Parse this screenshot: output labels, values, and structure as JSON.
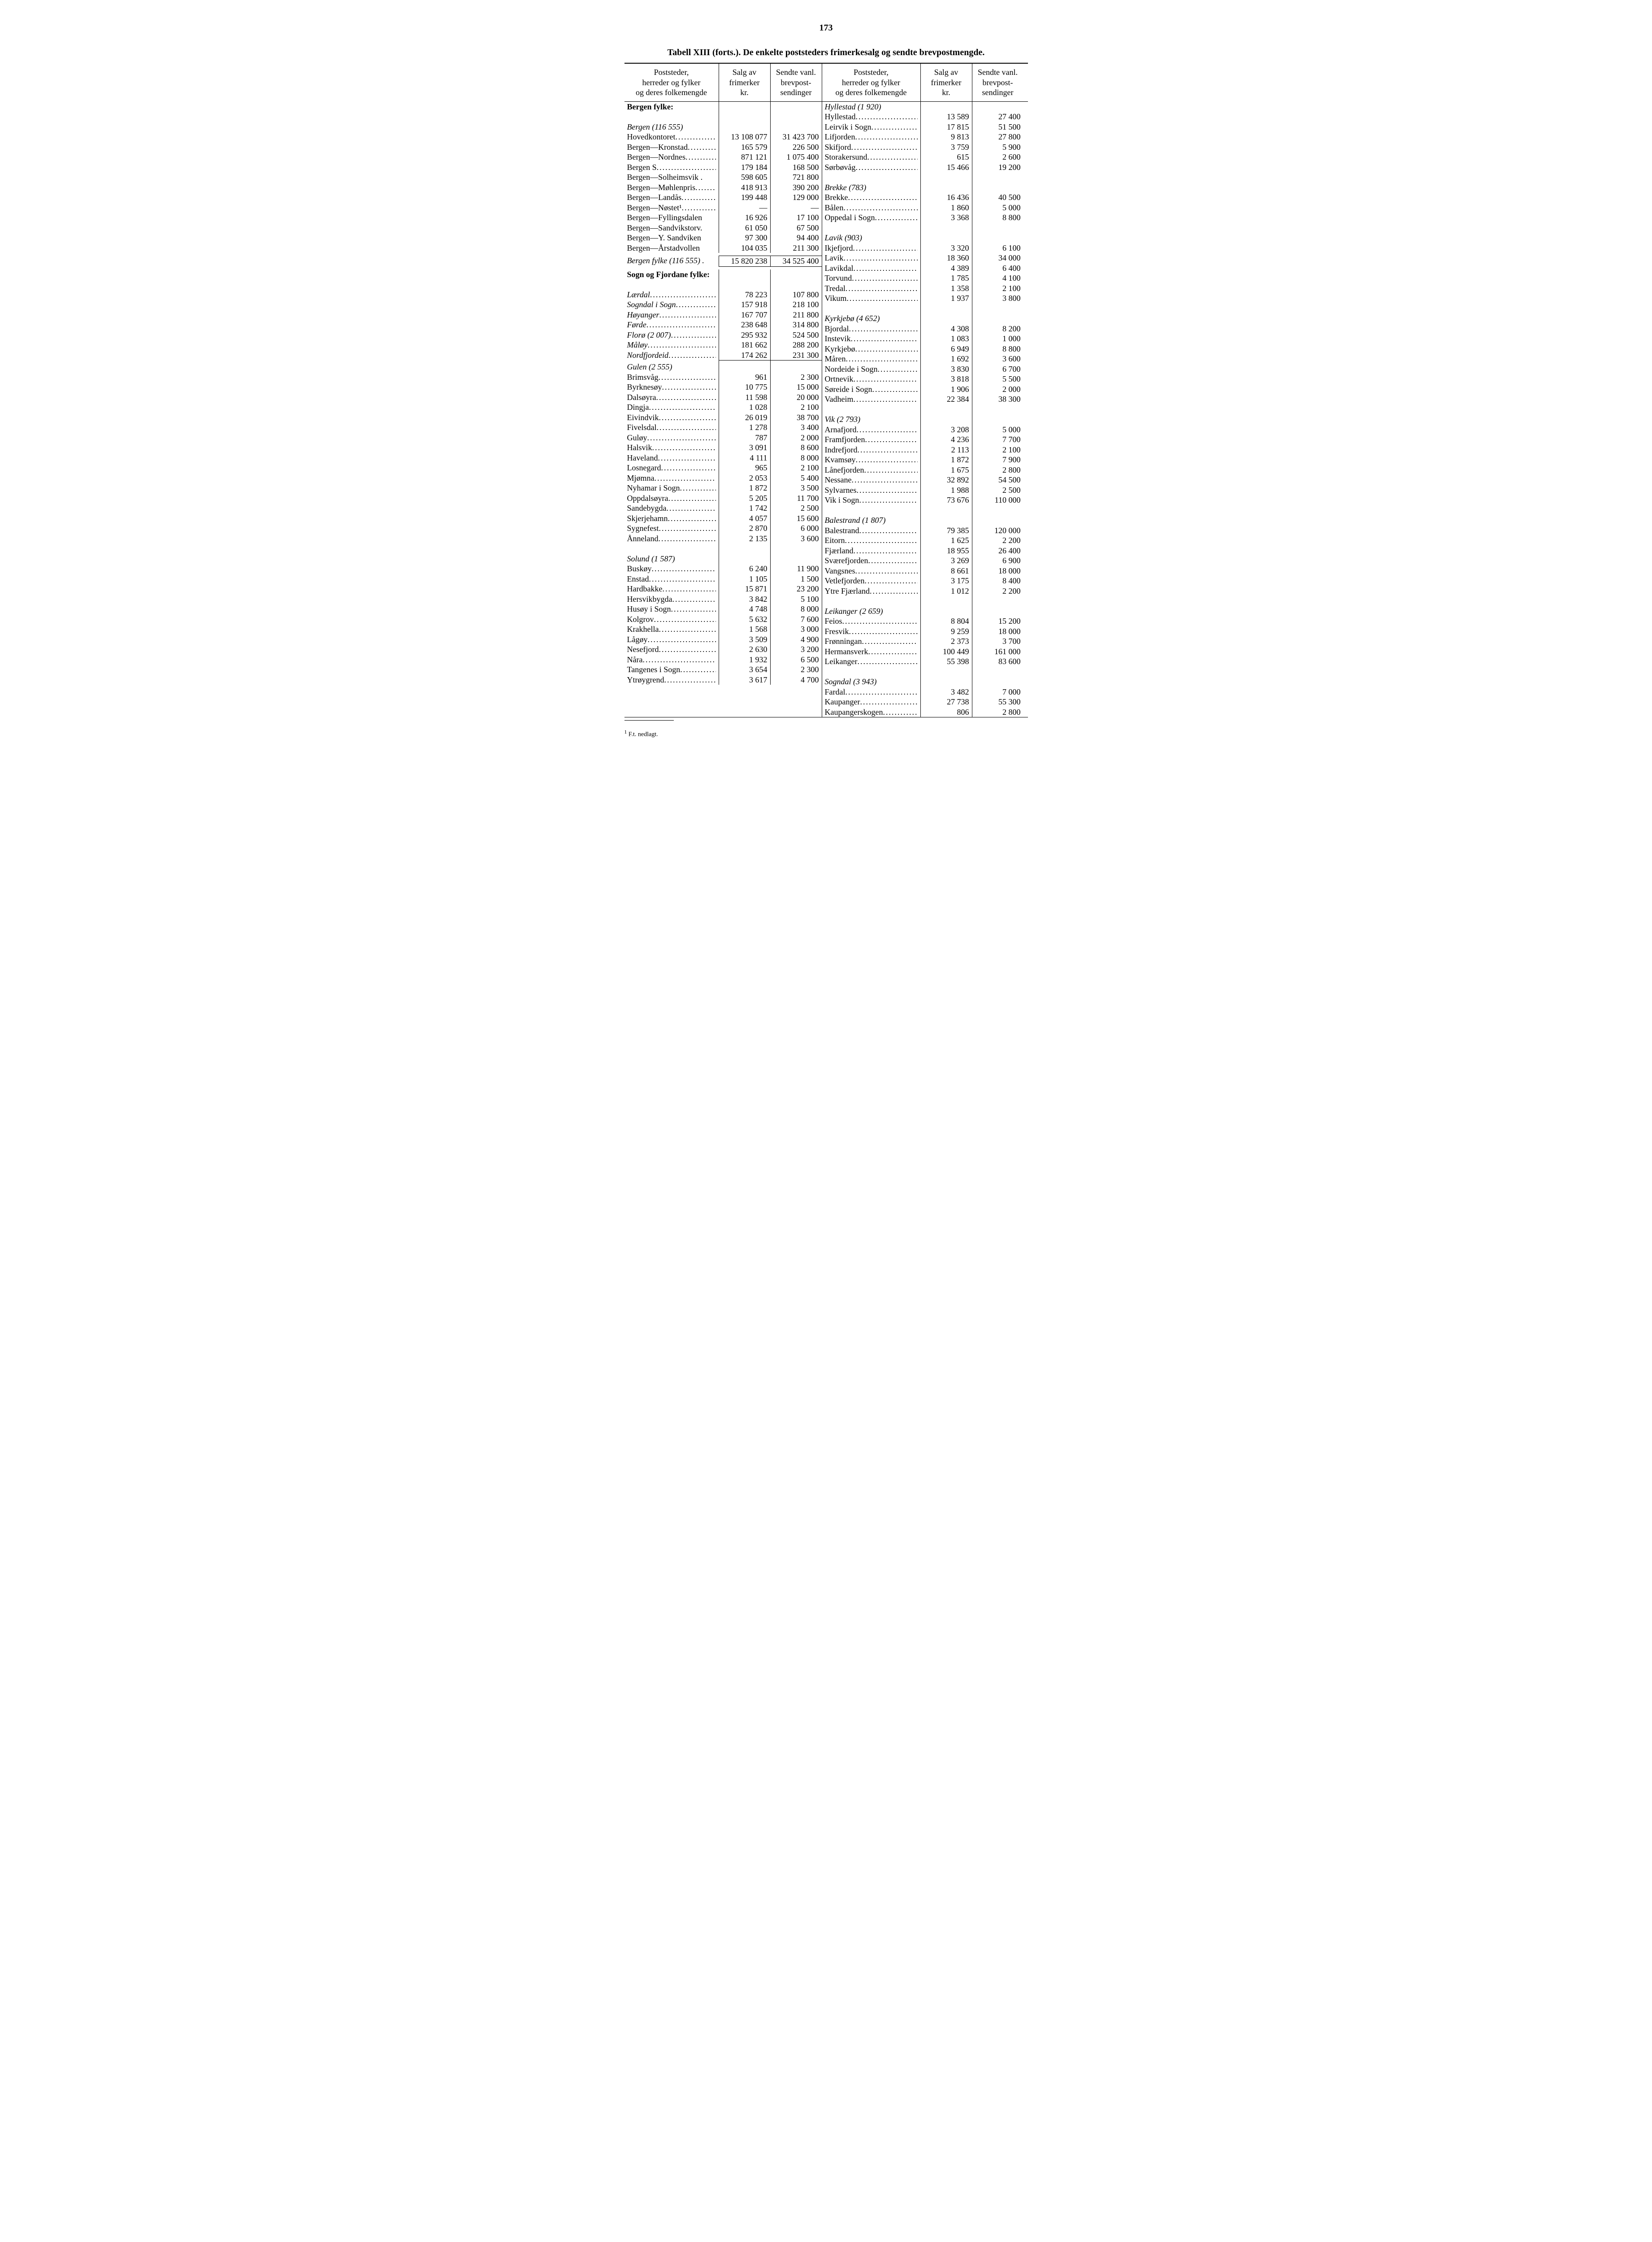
{
  "page_number": "173",
  "caption": "Tabell XIII (forts.). De enkelte poststeders frimerkesalg og sendte brevpostmengde.",
  "headers": {
    "name": "Poststeder,\nherreder og fylker\nog deres folkemengde",
    "stamps": "Salg av\nfrimerker\nkr.",
    "send": "Sendte vanl.\nbrevpost-\nsendinger"
  },
  "footnote_marker": "1",
  "footnote_text": "F.t. nedlagt.",
  "left": [
    {
      "type": "section",
      "name": "Bergen fylke:"
    },
    {
      "type": "blank"
    },
    {
      "type": "group",
      "name": "Bergen (116 555)"
    },
    {
      "type": "data",
      "name": "Hovedkontoret",
      "stamps": "13 108 077",
      "send": "31 423 700"
    },
    {
      "type": "data",
      "name": "Bergen—Kronstad",
      "stamps": "165 579",
      "send": "226 500"
    },
    {
      "type": "data",
      "name": "Bergen—Nordnes",
      "stamps": "871 121",
      "send": "1 075 400"
    },
    {
      "type": "data",
      "name": "Bergen S",
      "stamps": "179 184",
      "send": "168 500"
    },
    {
      "type": "data",
      "name": "Bergen—Solheimsvik .",
      "nodots": true,
      "stamps": "598 605",
      "send": "721 800"
    },
    {
      "type": "data",
      "name": "Bergen—Møhlenpris",
      "stamps": "418 913",
      "send": "390 200"
    },
    {
      "type": "data",
      "name": "Bergen—Landås",
      "stamps": "199 448",
      "send": "129 000"
    },
    {
      "type": "data",
      "name": "Bergen—Nøstet¹",
      "stamps": "—",
      "send": "—"
    },
    {
      "type": "data",
      "name": "Bergen—Fyllingsdalen",
      "nodots": true,
      "stamps": "16 926",
      "send": "17 100"
    },
    {
      "type": "data",
      "name": "Bergen—Sandvikstorv.",
      "nodots": true,
      "stamps": "61 050",
      "send": "67 500"
    },
    {
      "type": "data",
      "name": "Bergen—Y. Sandviken",
      "nodots": true,
      "stamps": "97 300",
      "send": "94 400"
    },
    {
      "type": "data",
      "name": "Bergen—Årstadvollen",
      "nodots": true,
      "stamps": "104 035",
      "send": "211 300"
    },
    {
      "type": "subtotal",
      "name": "Bergen fylke (116 555) .",
      "nodots": true,
      "stamps": "15 820 238",
      "send": "34 525 400",
      "italic": true
    },
    {
      "type": "section",
      "name": "Sogn og Fjordane fylke:"
    },
    {
      "type": "blank"
    },
    {
      "type": "data",
      "name": "Lærdal",
      "italic": true,
      "stamps": "78 223",
      "send": "107 800"
    },
    {
      "type": "data",
      "name": "Sogndal i Sogn",
      "italic": true,
      "stamps": "157 918",
      "send": "218 100"
    },
    {
      "type": "data",
      "name": "Høyanger",
      "italic": true,
      "stamps": "167 707",
      "send": "211 800"
    },
    {
      "type": "data",
      "name": "Førde",
      "italic": true,
      "stamps": "238 648",
      "send": "314 800"
    },
    {
      "type": "data",
      "name": "Florø (2 007)",
      "italic": true,
      "stamps": "295 932",
      "send": "524 500"
    },
    {
      "type": "data",
      "name": "Måløy",
      "italic": true,
      "stamps": "181 662",
      "send": "288 200"
    },
    {
      "type": "data",
      "name": "Nordfjordeid",
      "italic": true,
      "stamps": "174 262",
      "send": "231 300"
    },
    {
      "type": "ruleonly"
    },
    {
      "type": "group",
      "name": "Gulen (2 555)"
    },
    {
      "type": "data",
      "name": "Brimsvåg",
      "stamps": "961",
      "send": "2 300"
    },
    {
      "type": "data",
      "name": "Byrknesøy",
      "stamps": "10 775",
      "send": "15 000"
    },
    {
      "type": "data",
      "name": "Dalsøyra",
      "stamps": "11 598",
      "send": "20 000"
    },
    {
      "type": "data",
      "name": "Dingja",
      "stamps": "1 028",
      "send": "2 100"
    },
    {
      "type": "data",
      "name": "Eivindvik",
      "stamps": "26 019",
      "send": "38 700"
    },
    {
      "type": "data",
      "name": "Fivelsdal",
      "stamps": "1 278",
      "send": "3 400"
    },
    {
      "type": "data",
      "name": "Guløy",
      "stamps": "787",
      "send": "2 000"
    },
    {
      "type": "data",
      "name": "Halsvik",
      "stamps": "3 091",
      "send": "8 600"
    },
    {
      "type": "data",
      "name": "Haveland",
      "stamps": "4 111",
      "send": "8 000"
    },
    {
      "type": "data",
      "name": "Losnegard",
      "stamps": "965",
      "send": "2 100"
    },
    {
      "type": "data",
      "name": "Mjømna",
      "stamps": "2 053",
      "send": "5 400"
    },
    {
      "type": "data",
      "name": "Nyhamar i Sogn",
      "stamps": "1 872",
      "send": "3 500"
    },
    {
      "type": "data",
      "name": "Oppdalsøyra",
      "stamps": "5 205",
      "send": "11 700"
    },
    {
      "type": "data",
      "name": "Sandebygda",
      "stamps": "1 742",
      "send": "2 500"
    },
    {
      "type": "data",
      "name": "Skjerjehamn",
      "stamps": "4 057",
      "send": "15 600"
    },
    {
      "type": "data",
      "name": "Sygnefest",
      "stamps": "2 870",
      "send": "6 000"
    },
    {
      "type": "data",
      "name": "Ånneland",
      "stamps": "2 135",
      "send": "3 600"
    },
    {
      "type": "blank"
    },
    {
      "type": "group",
      "name": "Solund (1 587)"
    },
    {
      "type": "data",
      "name": "Buskøy",
      "stamps": "6 240",
      "send": "11 900"
    },
    {
      "type": "data",
      "name": "Enstad",
      "stamps": "1 105",
      "send": "1 500"
    },
    {
      "type": "data",
      "name": "Hardbakke",
      "stamps": "15 871",
      "send": "23 200"
    },
    {
      "type": "data",
      "name": "Hersvikbygda",
      "stamps": "3 842",
      "send": "5 100"
    },
    {
      "type": "data",
      "name": "Husøy i Sogn",
      "stamps": "4 748",
      "send": "8 000"
    },
    {
      "type": "data",
      "name": "Kolgrov",
      "stamps": "5 632",
      "send": "7 600"
    },
    {
      "type": "data",
      "name": "Krakhella",
      "stamps": "1 568",
      "send": "3 000"
    },
    {
      "type": "data",
      "name": "Lågøy",
      "stamps": "3 509",
      "send": "4 900"
    },
    {
      "type": "data",
      "name": "Nesefjord",
      "stamps": "2 630",
      "send": "3 200"
    },
    {
      "type": "data",
      "name": "Nåra",
      "stamps": "1 932",
      "send": "6 500"
    },
    {
      "type": "data",
      "name": "Tangenes i Sogn",
      "stamps": "3 654",
      "send": "2 300"
    },
    {
      "type": "data",
      "name": "Ytrøygrend",
      "stamps": "3 617",
      "send": "4 700"
    }
  ],
  "right": [
    {
      "type": "group",
      "name": "Hyllestad (1 920)"
    },
    {
      "type": "data",
      "name": "Hyllestad",
      "stamps": "13 589",
      "send": "27 400"
    },
    {
      "type": "data",
      "name": "Leirvik i Sogn",
      "stamps": "17 815",
      "send": "51 500"
    },
    {
      "type": "data",
      "name": "Lifjorden",
      "stamps": "9 813",
      "send": "27 800"
    },
    {
      "type": "data",
      "name": "Skifjord",
      "stamps": "3 759",
      "send": "5 900"
    },
    {
      "type": "data",
      "name": "Storakersund",
      "stamps": "615",
      "send": "2 600"
    },
    {
      "type": "data",
      "name": "Sørbøvåg",
      "stamps": "15 466",
      "send": "19 200"
    },
    {
      "type": "blank"
    },
    {
      "type": "group",
      "name": "Brekke (783)"
    },
    {
      "type": "data",
      "name": "Brekke",
      "stamps": "16 436",
      "send": "40 500"
    },
    {
      "type": "data",
      "name": "Bålen",
      "stamps": "1 860",
      "send": "5 000"
    },
    {
      "type": "data",
      "name": "Oppedal i Sogn",
      "stamps": "3 368",
      "send": "8 800"
    },
    {
      "type": "blank"
    },
    {
      "type": "group",
      "name": "Lavik (903)"
    },
    {
      "type": "data",
      "name": "Ikjefjord",
      "stamps": "3 320",
      "send": "6 100"
    },
    {
      "type": "data",
      "name": "Lavik",
      "stamps": "18 360",
      "send": "34 000"
    },
    {
      "type": "data",
      "name": "Lavikdal",
      "stamps": "4 389",
      "send": "6 400"
    },
    {
      "type": "data",
      "name": "Torvund",
      "stamps": "1 785",
      "send": "4 100"
    },
    {
      "type": "data",
      "name": "Tredal",
      "stamps": "1 358",
      "send": "2 100"
    },
    {
      "type": "data",
      "name": "Vikum",
      "stamps": "1 937",
      "send": "3 800"
    },
    {
      "type": "blank"
    },
    {
      "type": "group",
      "name": "Kyrkjebø (4 652)"
    },
    {
      "type": "data",
      "name": "Bjordal",
      "stamps": "4 308",
      "send": "8 200"
    },
    {
      "type": "data",
      "name": "Instevik",
      "stamps": "1 083",
      "send": "1 000"
    },
    {
      "type": "data",
      "name": "Kyrkjebø",
      "stamps": "6 949",
      "send": "8 800"
    },
    {
      "type": "data",
      "name": "Måren",
      "stamps": "1 692",
      "send": "3 600"
    },
    {
      "type": "data",
      "name": "Nordeide i Sogn",
      "stamps": "3 830",
      "send": "6 700"
    },
    {
      "type": "data",
      "name": "Ortnevik",
      "stamps": "3 818",
      "send": "5 500"
    },
    {
      "type": "data",
      "name": "Søreide i Sogn",
      "stamps": "1 906",
      "send": "2 000"
    },
    {
      "type": "data",
      "name": "Vadheim",
      "stamps": "22 384",
      "send": "38 300"
    },
    {
      "type": "blank"
    },
    {
      "type": "group",
      "name": "Vik (2 793)"
    },
    {
      "type": "data",
      "name": "Arnafjord",
      "stamps": "3 208",
      "send": "5 000"
    },
    {
      "type": "data",
      "name": "Framfjorden",
      "stamps": "4 236",
      "send": "7 700"
    },
    {
      "type": "data",
      "name": "Indrefjord",
      "stamps": "2 113",
      "send": "2 100"
    },
    {
      "type": "data",
      "name": "Kvamsøy",
      "stamps": "1 872",
      "send": "7 900"
    },
    {
      "type": "data",
      "name": "Lånefjorden",
      "stamps": "1 675",
      "send": "2 800"
    },
    {
      "type": "data",
      "name": "Nessane",
      "stamps": "32 892",
      "send": "54 500"
    },
    {
      "type": "data",
      "name": "Sylvarnes",
      "stamps": "1 988",
      "send": "2 500"
    },
    {
      "type": "data",
      "name": "Vik i Sogn",
      "stamps": "73 676",
      "send": "110 000"
    },
    {
      "type": "blank"
    },
    {
      "type": "group",
      "name": "Balestrand (1 807)"
    },
    {
      "type": "data",
      "name": "Balestrand",
      "stamps": "79 385",
      "send": "120 000"
    },
    {
      "type": "data",
      "name": "Eitorn",
      "stamps": "1 625",
      "send": "2 200"
    },
    {
      "type": "data",
      "name": "Fjærland",
      "stamps": "18 955",
      "send": "26 400"
    },
    {
      "type": "data",
      "name": "Sværefjorden",
      "stamps": "3 269",
      "send": "6 900"
    },
    {
      "type": "data",
      "name": "Vangsnes",
      "stamps": "8 661",
      "send": "18 000"
    },
    {
      "type": "data",
      "name": "Vetlefjorden",
      "stamps": "3 175",
      "send": "8 400"
    },
    {
      "type": "data",
      "name": "Ytre Fjærland",
      "stamps": "1 012",
      "send": "2 200"
    },
    {
      "type": "blank"
    },
    {
      "type": "group",
      "name": "Leikanger (2 659)"
    },
    {
      "type": "data",
      "name": "Feios",
      "stamps": "8 804",
      "send": "15 200"
    },
    {
      "type": "data",
      "name": "Fresvik",
      "stamps": "9 259",
      "send": "18 000"
    },
    {
      "type": "data",
      "name": "Frønningan",
      "stamps": "2 373",
      "send": "3 700"
    },
    {
      "type": "data",
      "name": "Hermansverk",
      "stamps": "100 449",
      "send": "161 000"
    },
    {
      "type": "data",
      "name": "Leikanger",
      "stamps": "55 398",
      "send": "83 600"
    },
    {
      "type": "blank"
    },
    {
      "type": "group",
      "name": "Sogndal (3 943)"
    },
    {
      "type": "data",
      "name": "Fardal",
      "stamps": "3 482",
      "send": "7 000"
    },
    {
      "type": "data",
      "name": "Kaupanger",
      "stamps": "27 738",
      "send": "55 300"
    },
    {
      "type": "data",
      "name": "Kaupangerskogen",
      "stamps": "806",
      "send": "2 800"
    }
  ]
}
